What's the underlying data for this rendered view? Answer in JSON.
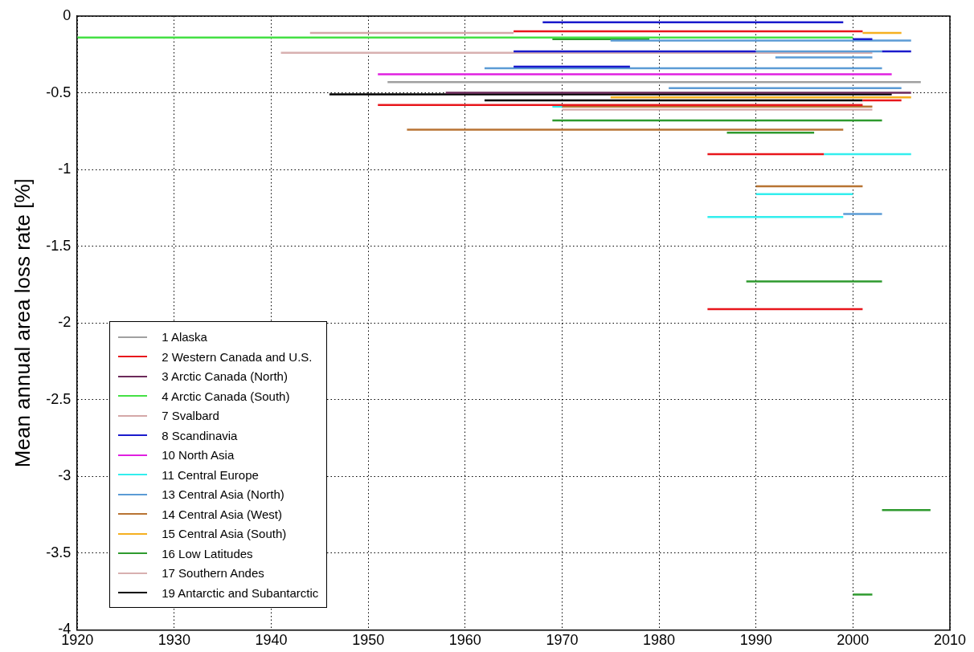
{
  "chart_data": {
    "type": "line",
    "ylabel": "Mean annual area loss rate [%]",
    "xlim": [
      1920,
      2010
    ],
    "xticks": [
      1920,
      1930,
      1940,
      1950,
      1960,
      1970,
      1980,
      1990,
      2000,
      2010
    ],
    "ylim": [
      -4,
      0
    ],
    "yticks": [
      -4,
      -3.5,
      -3,
      -2.5,
      -2,
      -1.5,
      -1,
      -0.5,
      0
    ],
    "grid": true,
    "legend": "bottom left",
    "marker": "none",
    "line_style": "solid",
    "series": [
      {
        "name": "1 Alaska",
        "color": "#a0a0a0",
        "x": [
          1952,
          2007
        ],
        "values": [
          -0.43,
          -0.43
        ]
      },
      {
        "name": "2 Western Canada and U.S.",
        "color": "#e8161c",
        "x": [
          1965,
          2001
        ],
        "values": [
          -0.1,
          -0.1
        ]
      },
      {
        "color": "#e8161c",
        "x": [
          2001,
          2005
        ],
        "values": [
          -0.55,
          -0.55
        ]
      },
      {
        "color": "#e8161c",
        "x": [
          1951,
          2001
        ],
        "values": [
          -0.58,
          -0.58
        ]
      },
      {
        "color": "#e8161c",
        "x": [
          1985,
          1997
        ],
        "values": [
          -0.9,
          -0.9
        ]
      },
      {
        "color": "#e8161c",
        "x": [
          1985,
          2001
        ],
        "values": [
          -1.91,
          -1.91
        ]
      },
      {
        "name": "3 Arctic Canada (North)",
        "color": "#6b2a5a",
        "x": [
          1958,
          2006
        ],
        "values": [
          -0.5,
          -0.5
        ]
      },
      {
        "name": "4 Arctic Canada (South)",
        "color": "#44e044",
        "x": [
          1920,
          2000
        ],
        "values": [
          -0.14,
          -0.14
        ]
      },
      {
        "name": "7 Svalbard",
        "color": "#d4a8a8",
        "x": [
          1944,
          1965
        ],
        "values": [
          -0.11,
          -0.11
        ]
      },
      {
        "name": "8 Scandinavia",
        "color": "#1a1acc",
        "x": [
          1968,
          1999
        ],
        "values": [
          -0.04,
          -0.04
        ]
      },
      {
        "color": "#1a1acc",
        "x": [
          2000,
          2002
        ],
        "values": [
          -0.15,
          -0.15
        ]
      },
      {
        "color": "#1a1acc",
        "x": [
          1965,
          1990
        ],
        "values": [
          -0.23,
          -0.23
        ]
      },
      {
        "color": "#1a1acc",
        "x": [
          2003,
          2006
        ],
        "values": [
          -0.23,
          -0.23
        ]
      },
      {
        "color": "#1a1acc",
        "x": [
          1965,
          1977
        ],
        "values": [
          -0.33,
          -0.33
        ]
      },
      {
        "name": "10 North Asia",
        "color": "#e020e0",
        "x": [
          1951,
          2004
        ],
        "values": [
          -0.38,
          -0.38
        ]
      },
      {
        "name": "11 Central Europe",
        "color": "#33eeee",
        "x": [
          1969,
          1970
        ],
        "values": [
          -0.59,
          -0.59
        ]
      },
      {
        "color": "#33eeee",
        "x": [
          1997,
          2006
        ],
        "values": [
          -0.9,
          -0.9
        ]
      },
      {
        "color": "#33eeee",
        "x": [
          1990,
          2000
        ],
        "values": [
          -1.16,
          -1.16
        ]
      },
      {
        "color": "#33eeee",
        "x": [
          1985,
          1999
        ],
        "values": [
          -1.31,
          -1.31
        ]
      },
      {
        "name": "13 Central Asia (North)",
        "color": "#5b9bd5",
        "x": [
          1975,
          2006
        ],
        "values": [
          -0.16,
          -0.16
        ]
      },
      {
        "color": "#5b9bd5",
        "x": [
          1990,
          2003
        ],
        "values": [
          -0.23,
          -0.23
        ]
      },
      {
        "color": "#5b9bd5",
        "x": [
          1992,
          2002
        ],
        "values": [
          -0.27,
          -0.27
        ]
      },
      {
        "color": "#5b9bd5",
        "x": [
          1962,
          2003
        ],
        "values": [
          -0.34,
          -0.34
        ]
      },
      {
        "color": "#5b9bd5",
        "x": [
          1981,
          2005
        ],
        "values": [
          -0.47,
          -0.47
        ]
      },
      {
        "color": "#5b9bd5",
        "x": [
          1999,
          2003
        ],
        "values": [
          -1.29,
          -1.29
        ]
      },
      {
        "name": "14 Central Asia (West)",
        "color": "#b87333",
        "x": [
          1970,
          2002
        ],
        "values": [
          -0.59,
          -0.59
        ]
      },
      {
        "color": "#b87333",
        "x": [
          1954,
          1999
        ],
        "values": [
          -0.74,
          -0.74
        ]
      },
      {
        "color": "#b87333",
        "x": [
          1990,
          2001
        ],
        "values": [
          -1.11,
          -1.11
        ]
      },
      {
        "name": "15 Central Asia (South)",
        "color": "#f5b020",
        "x": [
          2001,
          2005
        ],
        "values": [
          -0.11,
          -0.11
        ]
      },
      {
        "color": "#f5b020",
        "x": [
          1975,
          2006
        ],
        "values": [
          -0.53,
          -0.53
        ]
      },
      {
        "name": "16 Low Latitudes",
        "color": "#2e9a2e",
        "x": [
          1969,
          1979
        ],
        "values": [
          -0.15,
          -0.15
        ]
      },
      {
        "color": "#2e9a2e",
        "x": [
          1969,
          2003
        ],
        "values": [
          -0.68,
          -0.68
        ]
      },
      {
        "color": "#2e9a2e",
        "x": [
          1987,
          1996
        ],
        "values": [
          -0.76,
          -0.76
        ]
      },
      {
        "color": "#2e9a2e",
        "x": [
          1989,
          2003
        ],
        "values": [
          -1.73,
          -1.73
        ]
      },
      {
        "color": "#2e9a2e",
        "x": [
          2003,
          2008
        ],
        "values": [
          -3.22,
          -3.22
        ]
      },
      {
        "color": "#2e9a2e",
        "x": [
          2000,
          2002
        ],
        "values": [
          -3.77,
          -3.77
        ]
      },
      {
        "name": "17 Southern Andes",
        "color": "#d8b0b0",
        "x": [
          1941,
          2002
        ],
        "values": [
          -0.24,
          -0.24
        ]
      },
      {
        "color": "#d8b0b0",
        "x": [
          1970,
          2002
        ],
        "values": [
          -0.61,
          -0.61
        ]
      },
      {
        "name": "19 Antarctic and Subantarctic",
        "color": "#000000",
        "x": [
          1946,
          2004
        ],
        "values": [
          -0.51,
          -0.51
        ]
      },
      {
        "color": "#000000",
        "x": [
          1962,
          2001
        ],
        "values": [
          -0.55,
          -0.55
        ]
      }
    ]
  }
}
